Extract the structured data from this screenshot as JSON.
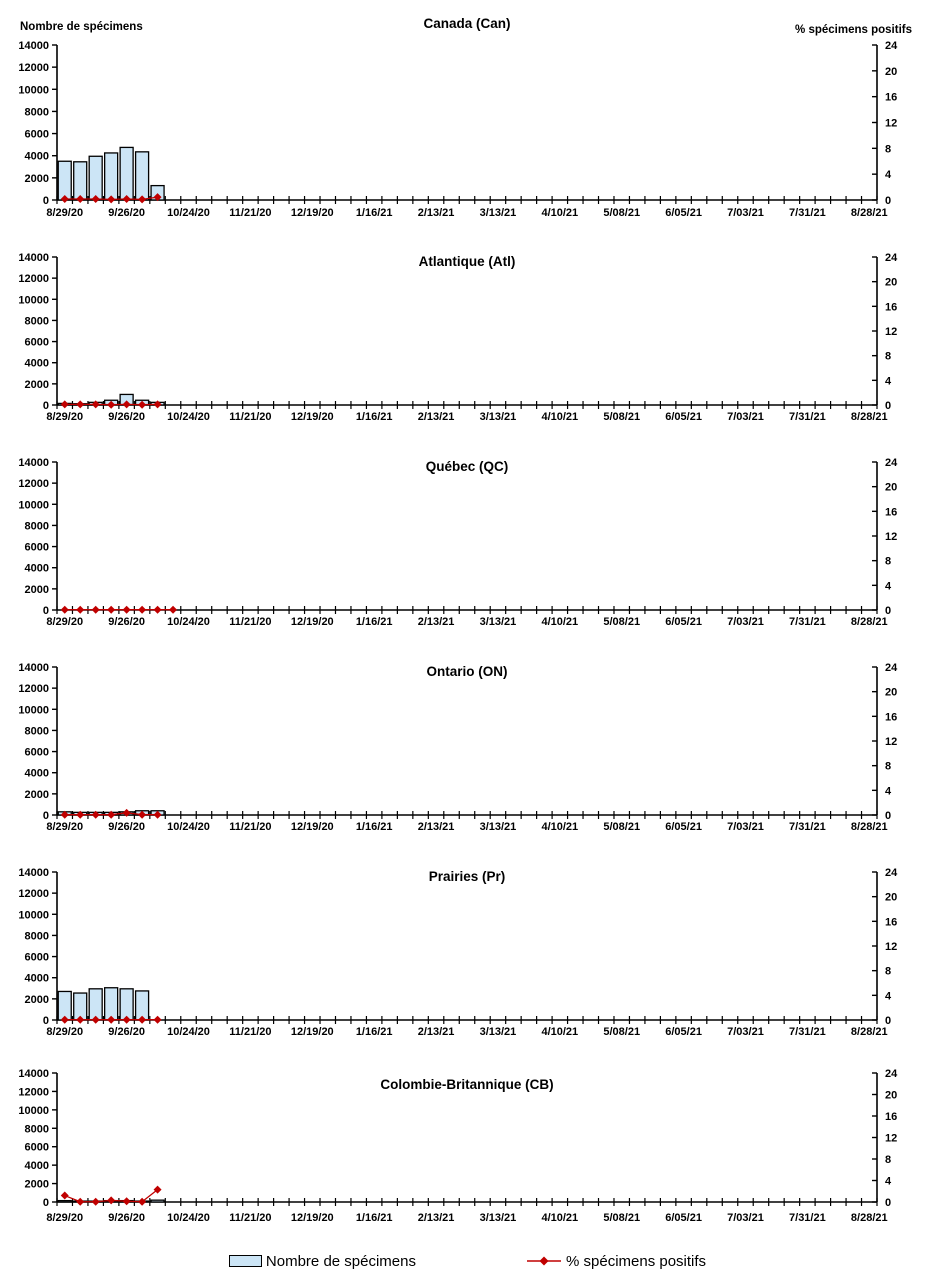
{
  "report": {
    "language": "fr",
    "description_left_header": "Nombre de spécimens",
    "description_right_header": "% spécimens positifs"
  },
  "colors": {
    "bar_fill": "#CCE5F6",
    "bar_border": "#000000",
    "line": "#C00000",
    "axis": "#000000",
    "text": "#000000"
  },
  "axes": {
    "y_left": {
      "title": "Nombre de spécimens",
      "min": 0,
      "max": 14000,
      "step": 2000
    },
    "y_right": {
      "title": "% spécimens positifs",
      "min": 0,
      "max": 24,
      "step": 4
    },
    "x": {
      "weeks_total": 53,
      "label_every_ticks": 4,
      "tick_labels": [
        "8/29/20",
        "9/26/20",
        "10/24/20",
        "11/21/20",
        "12/19/20",
        "1/16/21",
        "2/13/21",
        "3/13/21",
        "4/10/21",
        "5/08/21",
        "6/05/21",
        "7/03/21",
        "7/31/21",
        "8/28/21"
      ]
    }
  },
  "legend": {
    "bar_label": "Nombre de spécimens",
    "line_label": "% spécimens positifs"
  },
  "chart_data": [
    {
      "type": "bar+line",
      "title": "Canada (Can)",
      "weeks": [
        "8/29/20",
        "9/5/20",
        "9/12/20",
        "9/19/20",
        "9/26/20",
        "10/3/20",
        "10/10/20"
      ],
      "specimens": [
        3500,
        3450,
        3950,
        4250,
        4750,
        4350,
        1300
      ],
      "pct_positive": [
        0.15,
        0.15,
        0.15,
        0.1,
        0.15,
        0.1,
        0.45
      ]
    },
    {
      "type": "bar+line",
      "title": "Atlantique (Atl)",
      "weeks": [
        "8/29/20",
        "9/5/20",
        "9/12/20",
        "9/19/20",
        "9/26/20",
        "10/3/20",
        "10/10/20"
      ],
      "specimens": [
        150,
        120,
        250,
        450,
        1000,
        450,
        250
      ],
      "pct_positive": [
        0.1,
        0.1,
        0.1,
        0.05,
        0.1,
        0.05,
        0.1
      ]
    },
    {
      "type": "bar+line",
      "title": "Québec (QC)",
      "weeks": [
        "8/29/20",
        "9/5/20",
        "9/12/20",
        "9/19/20",
        "9/26/20",
        "10/3/20",
        "10/10/20",
        "10/17/20"
      ],
      "specimens": [
        0,
        0,
        0,
        0,
        0,
        0,
        0,
        0
      ],
      "pct_positive": [
        0.05,
        0.05,
        0.05,
        0.05,
        0.05,
        0.05,
        0.05,
        0.05
      ]
    },
    {
      "type": "bar+line",
      "title": "Ontario (ON)",
      "weeks": [
        "8/29/20",
        "9/5/20",
        "9/12/20",
        "9/19/20",
        "9/26/20",
        "10/3/20",
        "10/10/20"
      ],
      "specimens": [
        300,
        250,
        250,
        250,
        300,
        400,
        400
      ],
      "pct_positive": [
        0.05,
        0.05,
        0.05,
        0.05,
        0.35,
        0.05,
        0.05
      ]
    },
    {
      "type": "bar+line",
      "title": "Prairies (Pr)",
      "weeks": [
        "8/29/20",
        "9/5/20",
        "9/12/20",
        "9/19/20",
        "9/26/20",
        "10/3/20",
        "10/10/20"
      ],
      "specimens": [
        2700,
        2550,
        2950,
        3050,
        2950,
        2750,
        0
      ],
      "pct_positive": [
        0.05,
        0.05,
        0.05,
        0.05,
        0.05,
        0.05,
        0.05
      ]
    },
    {
      "type": "bar+line",
      "title": "Colombie-Britannique (CB)",
      "weeks": [
        "8/29/20",
        "9/5/20",
        "9/12/20",
        "9/19/20",
        "9/26/20",
        "10/3/20",
        "10/10/20"
      ],
      "specimens": [
        150,
        100,
        100,
        150,
        150,
        100,
        200
      ],
      "pct_positive": [
        1.2,
        0.05,
        0.05,
        0.3,
        0.15,
        0.05,
        2.3
      ]
    }
  ]
}
